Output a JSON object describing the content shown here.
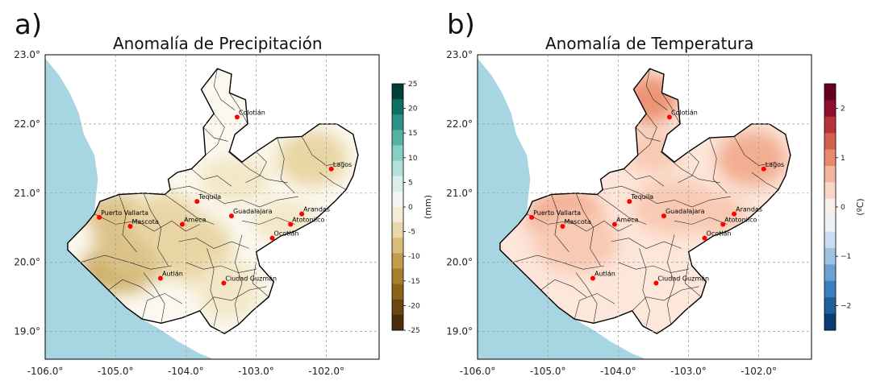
{
  "panels": [
    {
      "letter": "a)",
      "title": "Anomalía de Precipitación",
      "x_ticks": [
        "-106.0°",
        "-105.0°",
        "-104.0°",
        "-103.0°",
        "-102.0°"
      ],
      "y_ticks": [
        "23.0°",
        "22.0°",
        "21.0°",
        "20.0°",
        "19.0°"
      ],
      "colorbar": {
        "label": "(mm)",
        "ticks": [
          "25",
          "20",
          "15",
          "10",
          "5",
          "0",
          "-5",
          "-10",
          "-15",
          "-20",
          "-25"
        ],
        "range": [
          -25,
          25
        ],
        "colors": [
          "#4a2d0a",
          "#6b4512",
          "#8d631c",
          "#a97e2d",
          "#c39b4c",
          "#d8bc78",
          "#e8d7a8",
          "#f4ecd6",
          "#f5f5f5",
          "#d9efec",
          "#b3e2da",
          "#86cfc2",
          "#56b3a4",
          "#2c9184",
          "#0f6e62",
          "#003f35"
        ]
      }
    },
    {
      "letter": "b)",
      "title": "Anomalía de Temperatura",
      "x_ticks": [
        "-106.0°",
        "-105.0°",
        "-104.0°",
        "-103.0°",
        "-102.0°"
      ],
      "y_ticks": [
        "23.0°",
        "22.0°",
        "21.0°",
        "20.0°",
        "19.0°"
      ],
      "colorbar": {
        "label": "(ºC)",
        "ticks": [
          "2",
          "1",
          "0",
          "−1",
          "−2"
        ],
        "range": [
          -2.5,
          2.5
        ],
        "colors": [
          "#0b3d73",
          "#1f5f9c",
          "#3b80bd",
          "#6aa3d1",
          "#9cc4e2",
          "#c9def0",
          "#edf1f6",
          "#f7efe9",
          "#f8d7c6",
          "#f2b49b",
          "#e78a6f",
          "#d35f4f",
          "#b8323a",
          "#8e0f2a",
          "#67001f"
        ]
      }
    }
  ],
  "cities": [
    {
      "name": "Colotlán",
      "lon": -103.27,
      "lat": 22.1
    },
    {
      "name": "Lagos",
      "lon": -101.93,
      "lat": 21.35
    },
    {
      "name": "Tequila",
      "lon": -103.84,
      "lat": 20.88
    },
    {
      "name": "Guadalajara",
      "lon": -103.35,
      "lat": 20.67
    },
    {
      "name": "Arandas",
      "lon": -102.35,
      "lat": 20.7
    },
    {
      "name": "Atotonilco",
      "lon": -102.51,
      "lat": 20.55
    },
    {
      "name": "Puerto Vallarta",
      "lon": -105.23,
      "lat": 20.65
    },
    {
      "name": "Mascota",
      "lon": -104.79,
      "lat": 20.52
    },
    {
      "name": "Ameca",
      "lon": -104.05,
      "lat": 20.55
    },
    {
      "name": "Ocotlán",
      "lon": -102.77,
      "lat": 20.35
    },
    {
      "name": "Autlán",
      "lon": -104.36,
      "lat": 19.77
    },
    {
      "name": "Ciudad Guzmán",
      "lon": -103.46,
      "lat": 19.7
    }
  ],
  "style": {
    "ocean_color": "#a8d5e2",
    "marker_color": "#ff0000",
    "precip_shades": [
      "#fbf8ef",
      "#f3e7c7",
      "#e9d5a4",
      "#dcc287",
      "#cfae6a"
    ],
    "temp_shades": [
      "#fde6da",
      "#f8c9b3",
      "#f2ad92",
      "#ec9474"
    ]
  }
}
